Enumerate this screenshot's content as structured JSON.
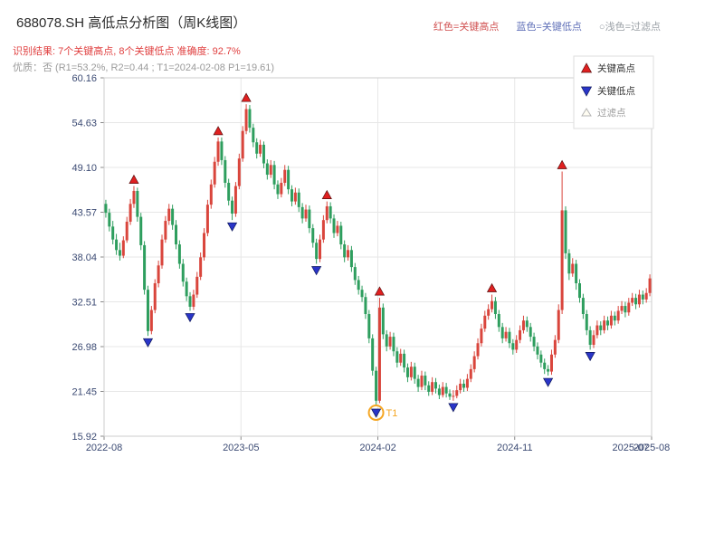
{
  "header": {
    "title": "688078.SH 高低点分析图（周K线图）",
    "legend_high": "红色=关键高点",
    "legend_low": "蓝色=关键低点",
    "legend_filter": "○浅色=过滤点",
    "result_line": "识别结果: 7个关键高点, 8个关键低点  准确度: 92.7%",
    "quality_line": "优质：否 (R1=53.2%, R2=0.44 ; T1=2024-02-08 P1=19.61)"
  },
  "chart_data": {
    "type": "candlestick",
    "symbol": "688078.SH",
    "period": "weekly",
    "title": "688078.SH 高低点分析图（周K线图）",
    "ylim": [
      15.92,
      60.16
    ],
    "y_ticks": [
      60.16,
      54.63,
      49.1,
      43.57,
      38.04,
      32.51,
      26.98,
      21.45,
      15.92
    ],
    "x_ticks": [
      {
        "label": "2022-08",
        "week": 0,
        "grid": true
      },
      {
        "label": "2023-05",
        "week": 39,
        "grid": true
      },
      {
        "label": "2024-02",
        "week": 78,
        "grid": true
      },
      {
        "label": "2024-11",
        "week": 117,
        "grid": true
      },
      {
        "label": "2025-07",
        "week": 150,
        "grid": false
      },
      {
        "label": "2025-08",
        "week": 156,
        "grid": true
      }
    ],
    "weeks": 156,
    "legend": {
      "high": "关键高点",
      "low": "关键低点",
      "filter": "过滤点"
    },
    "colors": {
      "up": "#d9453c",
      "down": "#2e9e5e",
      "marker_high": "#e02020",
      "marker_low": "#2a35c8",
      "filter": "#f5a623",
      "grid": "#e7e7e7",
      "border": "#cccccc",
      "axis_text": "#3b4a73",
      "result_text": "#e04040",
      "quality_text": "#9a9a9a"
    },
    "key_highs": [
      {
        "week": 8,
        "price": 46.8
      },
      {
        "week": 32,
        "price": 52.8
      },
      {
        "week": 40,
        "price": 56.9
      },
      {
        "week": 63,
        "price": 44.9
      },
      {
        "week": 78,
        "price": 33.0
      },
      {
        "week": 110,
        "price": 33.4
      },
      {
        "week": 130,
        "price": 48.6
      }
    ],
    "key_lows": [
      {
        "week": 12,
        "price": 28.3
      },
      {
        "week": 24,
        "price": 31.4
      },
      {
        "week": 36,
        "price": 42.6
      },
      {
        "week": 60,
        "price": 37.2
      },
      {
        "week": 77,
        "price": 19.61,
        "label": "T1",
        "circled": true,
        "date": "2024-02-08"
      },
      {
        "week": 99,
        "price": 20.3
      },
      {
        "week": 126,
        "price": 23.4
      },
      {
        "week": 138,
        "price": 26.6
      }
    ],
    "candles": [
      [
        44.6,
        45.1,
        42.9,
        43.5
      ],
      [
        43.5,
        44.0,
        41.2,
        41.8
      ],
      [
        41.8,
        42.5,
        39.6,
        40.2
      ],
      [
        40.2,
        40.9,
        38.3,
        38.9
      ],
      [
        38.9,
        39.8,
        37.6,
        38.2
      ],
      [
        38.2,
        40.6,
        37.9,
        40.1
      ],
      [
        40.1,
        43.0,
        39.8,
        42.4
      ],
      [
        42.4,
        45.2,
        42.0,
        44.6
      ],
      [
        44.6,
        46.8,
        44.1,
        46.2
      ],
      [
        46.2,
        46.6,
        42.4,
        43.0
      ],
      [
        43.0,
        43.5,
        38.9,
        39.5
      ],
      [
        39.5,
        40.0,
        33.4,
        34.0
      ],
      [
        34.0,
        34.5,
        28.3,
        28.9
      ],
      [
        28.9,
        32.0,
        28.5,
        31.5
      ],
      [
        31.5,
        35.3,
        31.1,
        34.8
      ],
      [
        34.8,
        37.6,
        34.3,
        37.0
      ],
      [
        37.0,
        40.8,
        36.6,
        40.2
      ],
      [
        40.2,
        43.1,
        39.8,
        42.5
      ],
      [
        42.5,
        44.6,
        42.0,
        44.0
      ],
      [
        44.0,
        44.5,
        41.4,
        42.0
      ],
      [
        42.0,
        42.6,
        39.0,
        39.6
      ],
      [
        39.6,
        40.1,
        36.6,
        37.2
      ],
      [
        37.2,
        37.8,
        34.4,
        35.0
      ],
      [
        35.0,
        35.5,
        32.6,
        33.2
      ],
      [
        33.2,
        33.7,
        31.4,
        31.9
      ],
      [
        31.9,
        34.0,
        31.5,
        33.4
      ],
      [
        33.4,
        36.2,
        33.0,
        35.6
      ],
      [
        35.6,
        38.6,
        35.2,
        38.0
      ],
      [
        38.0,
        41.6,
        37.6,
        41.0
      ],
      [
        41.0,
        45.1,
        40.6,
        44.5
      ],
      [
        44.5,
        47.6,
        44.0,
        47.0
      ],
      [
        47.0,
        50.4,
        46.6,
        49.8
      ],
      [
        49.8,
        52.8,
        49.3,
        52.3
      ],
      [
        52.3,
        52.8,
        49.4,
        50.0
      ],
      [
        50.0,
        50.5,
        46.6,
        47.2
      ],
      [
        47.2,
        47.7,
        44.4,
        45.0
      ],
      [
        45.0,
        45.5,
        42.6,
        43.4
      ],
      [
        43.4,
        47.3,
        43.0,
        46.8
      ],
      [
        46.8,
        50.8,
        46.4,
        50.2
      ],
      [
        50.2,
        54.2,
        49.8,
        53.6
      ],
      [
        53.6,
        56.9,
        53.2,
        56.3
      ],
      [
        56.3,
        56.8,
        53.4,
        54.0
      ],
      [
        54.0,
        54.5,
        51.6,
        52.2
      ],
      [
        52.2,
        52.7,
        50.2,
        50.8
      ],
      [
        50.8,
        52.5,
        50.4,
        51.9
      ],
      [
        51.9,
        52.3,
        49.0,
        49.6
      ],
      [
        49.6,
        50.1,
        47.6,
        48.2
      ],
      [
        48.2,
        50.0,
        47.8,
        49.4
      ],
      [
        49.4,
        49.9,
        46.4,
        47.0
      ],
      [
        47.0,
        47.5,
        45.2,
        45.8
      ],
      [
        45.8,
        47.8,
        45.4,
        47.2
      ],
      [
        47.2,
        49.4,
        46.8,
        48.8
      ],
      [
        48.8,
        49.3,
        45.8,
        46.4
      ],
      [
        46.4,
        46.9,
        44.3,
        44.9
      ],
      [
        44.9,
        46.6,
        44.5,
        46.0
      ],
      [
        46.0,
        46.5,
        43.6,
        44.2
      ],
      [
        44.2,
        44.7,
        42.2,
        42.8
      ],
      [
        42.8,
        44.5,
        42.4,
        43.9
      ],
      [
        43.9,
        44.4,
        41.0,
        41.6
      ],
      [
        41.6,
        42.1,
        39.2,
        39.8
      ],
      [
        39.8,
        40.3,
        37.2,
        37.8
      ],
      [
        37.8,
        40.8,
        37.4,
        40.2
      ],
      [
        40.2,
        43.2,
        39.8,
        42.6
      ],
      [
        42.6,
        44.9,
        42.2,
        44.3
      ],
      [
        44.3,
        44.8,
        42.2,
        42.8
      ],
      [
        42.8,
        43.3,
        40.4,
        41.0
      ],
      [
        41.0,
        42.5,
        40.6,
        41.9
      ],
      [
        41.9,
        42.4,
        39.0,
        39.6
      ],
      [
        39.6,
        40.1,
        37.4,
        38.0
      ],
      [
        38.0,
        39.5,
        37.6,
        38.9
      ],
      [
        38.9,
        39.4,
        36.2,
        36.8
      ],
      [
        36.8,
        37.3,
        34.6,
        35.2
      ],
      [
        35.2,
        35.7,
        33.4,
        34.0
      ],
      [
        34.0,
        34.5,
        32.5,
        33.1
      ],
      [
        33.1,
        33.6,
        30.4,
        31.0
      ],
      [
        31.0,
        31.5,
        27.4,
        28.0
      ],
      [
        28.0,
        28.5,
        23.4,
        24.0
      ],
      [
        24.0,
        24.5,
        19.61,
        20.3
      ],
      [
        20.3,
        33.0,
        20.0,
        31.8
      ],
      [
        31.8,
        32.3,
        27.9,
        28.5
      ],
      [
        28.5,
        29.0,
        26.4,
        27.0
      ],
      [
        27.0,
        28.8,
        26.6,
        28.2
      ],
      [
        28.2,
        28.7,
        25.8,
        26.4
      ],
      [
        26.4,
        26.9,
        24.4,
        25.0
      ],
      [
        25.0,
        26.7,
        24.6,
        26.1
      ],
      [
        26.1,
        26.6,
        23.8,
        24.4
      ],
      [
        24.4,
        24.9,
        22.6,
        23.2
      ],
      [
        23.2,
        25.1,
        22.8,
        24.5
      ],
      [
        24.5,
        25.0,
        22.4,
        23.0
      ],
      [
        23.0,
        23.5,
        21.4,
        22.0
      ],
      [
        22.0,
        24.0,
        21.6,
        23.4
      ],
      [
        23.4,
        23.9,
        21.6,
        22.2
      ],
      [
        22.2,
        22.7,
        20.9,
        21.4
      ],
      [
        21.4,
        23.2,
        21.0,
        22.6
      ],
      [
        22.6,
        23.1,
        21.2,
        21.8
      ],
      [
        21.8,
        22.3,
        20.5,
        21.0
      ],
      [
        21.0,
        22.6,
        20.7,
        22.0
      ],
      [
        22.0,
        22.5,
        20.7,
        21.2
      ],
      [
        21.2,
        21.7,
        20.4,
        20.8
      ],
      [
        20.8,
        21.6,
        20.3,
        20.9
      ],
      [
        20.9,
        22.2,
        20.6,
        21.6
      ],
      [
        21.6,
        23.0,
        21.2,
        22.4
      ],
      [
        22.4,
        22.9,
        21.4,
        21.9
      ],
      [
        21.9,
        23.6,
        21.5,
        23.0
      ],
      [
        23.0,
        24.8,
        22.6,
        24.2
      ],
      [
        24.2,
        26.4,
        23.8,
        25.8
      ],
      [
        25.8,
        28.0,
        25.4,
        27.4
      ],
      [
        27.4,
        29.8,
        27.0,
        29.2
      ],
      [
        29.2,
        31.4,
        28.8,
        30.8
      ],
      [
        30.8,
        32.2,
        30.3,
        31.6
      ],
      [
        31.6,
        33.4,
        31.2,
        32.6
      ],
      [
        32.6,
        33.1,
        30.4,
        31.0
      ],
      [
        31.0,
        31.5,
        28.8,
        29.4
      ],
      [
        29.4,
        29.9,
        27.4,
        28.0
      ],
      [
        28.0,
        29.4,
        27.6,
        28.8
      ],
      [
        28.8,
        29.3,
        26.8,
        27.4
      ],
      [
        27.4,
        27.9,
        26.0,
        26.6
      ],
      [
        26.6,
        28.4,
        26.2,
        27.8
      ],
      [
        27.8,
        29.6,
        27.4,
        29.0
      ],
      [
        29.0,
        30.8,
        28.6,
        30.2
      ],
      [
        30.2,
        30.7,
        28.8,
        29.4
      ],
      [
        29.4,
        29.9,
        27.6,
        28.2
      ],
      [
        28.2,
        28.7,
        26.4,
        27.0
      ],
      [
        27.0,
        27.5,
        25.4,
        26.0
      ],
      [
        26.0,
        26.5,
        24.4,
        25.0
      ],
      [
        25.0,
        25.5,
        23.6,
        24.2
      ],
      [
        24.2,
        24.7,
        23.4,
        23.9
      ],
      [
        23.9,
        26.6,
        23.5,
        26.0
      ],
      [
        26.0,
        28.4,
        25.6,
        27.8
      ],
      [
        27.8,
        32.2,
        27.4,
        31.5
      ],
      [
        31.5,
        48.6,
        31.0,
        43.8
      ],
      [
        43.8,
        44.3,
        37.8,
        38.5
      ],
      [
        38.5,
        39.0,
        35.2,
        36.0
      ],
      [
        36.0,
        37.9,
        35.6,
        37.2
      ],
      [
        37.2,
        37.7,
        34.0,
        34.8
      ],
      [
        34.8,
        35.3,
        32.4,
        33.0
      ],
      [
        33.0,
        33.5,
        30.4,
        31.0
      ],
      [
        31.0,
        31.5,
        28.4,
        29.0
      ],
      [
        29.0,
        29.5,
        26.6,
        27.2
      ],
      [
        27.2,
        29.0,
        26.8,
        28.4
      ],
      [
        28.4,
        30.2,
        28.0,
        29.6
      ],
      [
        29.6,
        30.1,
        28.4,
        29.0
      ],
      [
        29.0,
        30.8,
        28.6,
        30.2
      ],
      [
        30.2,
        30.7,
        29.0,
        29.6
      ],
      [
        29.6,
        31.4,
        29.2,
        30.8
      ],
      [
        30.8,
        31.3,
        29.6,
        30.2
      ],
      [
        30.2,
        32.0,
        29.8,
        31.4
      ],
      [
        31.4,
        32.6,
        31.0,
        32.0
      ],
      [
        32.0,
        32.5,
        30.6,
        31.2
      ],
      [
        31.2,
        33.0,
        30.8,
        32.4
      ],
      [
        32.4,
        33.6,
        32.0,
        33.0
      ],
      [
        33.0,
        33.5,
        31.6,
        32.2
      ],
      [
        32.2,
        34.0,
        31.8,
        33.4
      ],
      [
        33.4,
        33.9,
        32.2,
        32.8
      ],
      [
        32.8,
        34.2,
        32.4,
        33.6
      ],
      [
        33.6,
        35.9,
        33.2,
        35.4
      ]
    ]
  }
}
